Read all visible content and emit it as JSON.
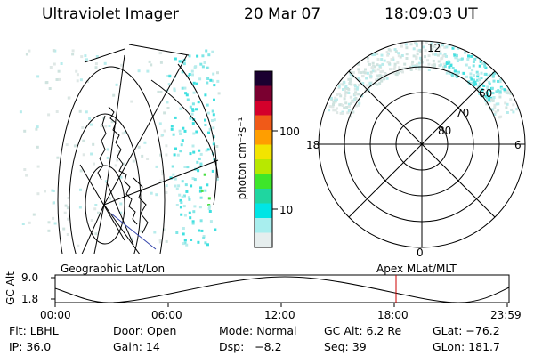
{
  "header": {
    "instrument": "Ultraviolet Imager",
    "date": "20 Mar 07",
    "time": "18:09:03 UT"
  },
  "colorbar": {
    "unit_label": "photon cm⁻²s⁻¹",
    "ticks": [
      "100",
      "10"
    ],
    "colors": [
      "#1a0030",
      "#7a0030",
      "#d4002b",
      "#f05a18",
      "#ff9e00",
      "#f2e400",
      "#b8e800",
      "#3ee62a",
      "#1fd6a0",
      "#00e5e5",
      "#a8eeee",
      "#e6eeee"
    ]
  },
  "polar_plot": {
    "lat_labels": [
      "60",
      "70",
      "80"
    ],
    "mlt_labels": {
      "top": "12",
      "left": "18",
      "right": "6",
      "bottom": "0"
    }
  },
  "timeline": {
    "left_label": "Geographic Lat/Lon",
    "right_label": "Apex MLat/MLT",
    "y_axis_label": "GC Alt",
    "y_ticks": [
      "9.0",
      "1.8"
    ],
    "x_ticks": [
      "00:00",
      "06:00",
      "12:00",
      "18:00",
      "23:59"
    ],
    "marker_color": "#cc0000"
  },
  "footer": {
    "row1": [
      "Flt: LBHL",
      "Door: Open",
      "Mode: Normal",
      "GC Alt: 6.2 Re",
      "GLat: −76.2"
    ],
    "row2": [
      "IP: 36.0",
      "Gain: 14",
      "Dsp:   −8.2",
      "Seq: 39",
      "GLon: 181.7"
    ]
  }
}
